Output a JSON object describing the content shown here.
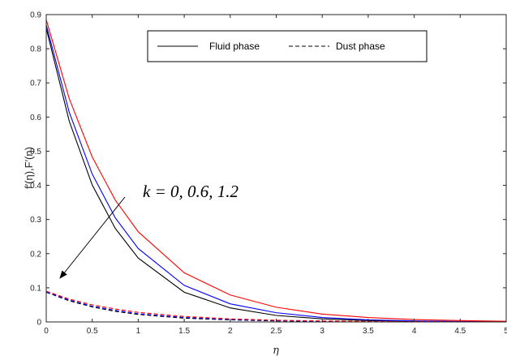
{
  "chart_data": {
    "type": "line",
    "title": "",
    "xlabel": "η",
    "ylabel": "f′(η),F′(η)",
    "xlim": [
      0,
      5
    ],
    "ylim": [
      0,
      0.9
    ],
    "xticks": [
      "0",
      "0.5",
      "1",
      "1.5",
      "2",
      "2.5",
      "3",
      "3.5",
      "4",
      "4.5",
      "5"
    ],
    "yticks": [
      "0",
      "0.1",
      "0.2",
      "0.3",
      "0.4",
      "0.5",
      "0.6",
      "0.7",
      "0.8",
      "0.9"
    ],
    "grid": false,
    "legend": {
      "placement": "top-center",
      "entries": [
        {
          "label": "Fluid phase",
          "style": "solid"
        },
        {
          "label": "Dust phase",
          "style": "dashed"
        }
      ]
    },
    "annotation": {
      "text": "k = 0, 0.6, 1.2"
    },
    "series": [
      {
        "phase": "fluid",
        "k": "0",
        "color": "#000000",
        "dash": "solid",
        "x": [
          0,
          0.25,
          0.5,
          0.75,
          1,
          1.5,
          2,
          2.5,
          3,
          3.5,
          4,
          4.5,
          5
        ],
        "y": [
          0.86,
          0.588,
          0.401,
          0.274,
          0.187,
          0.087,
          0.041,
          0.019,
          0.009,
          0.004,
          0.002,
          0.001,
          0.0005
        ]
      },
      {
        "phase": "fluid",
        "k": "0.6",
        "color": "#0000ff",
        "dash": "solid",
        "x": [
          0,
          0.25,
          0.5,
          0.75,
          1,
          1.5,
          2,
          2.5,
          3,
          3.5,
          4,
          4.5,
          5
        ],
        "y": [
          0.87,
          0.614,
          0.433,
          0.305,
          0.215,
          0.107,
          0.053,
          0.027,
          0.013,
          0.006,
          0.003,
          0.0015,
          0.0008
        ]
      },
      {
        "phase": "fluid",
        "k": "1.2",
        "color": "#ff0000",
        "dash": "solid",
        "x": [
          0,
          0.25,
          0.5,
          0.75,
          1,
          1.5,
          2,
          2.5,
          3,
          3.5,
          4,
          4.5,
          5
        ],
        "y": [
          0.885,
          0.654,
          0.483,
          0.357,
          0.264,
          0.144,
          0.079,
          0.043,
          0.023,
          0.013,
          0.007,
          0.004,
          0.002
        ]
      },
      {
        "phase": "dust",
        "k": "0",
        "color": "#000000",
        "dash": "dashed",
        "x": [
          0,
          0.25,
          0.5,
          0.75,
          1,
          1.5,
          2,
          2.5,
          3,
          3.5,
          4,
          4.5,
          5
        ],
        "y": [
          0.087,
          0.062,
          0.044,
          0.031,
          0.022,
          0.011,
          0.006,
          0.003,
          0.002,
          0.001,
          0.0005,
          0.0003,
          0.0001
        ]
      },
      {
        "phase": "dust",
        "k": "0.6",
        "color": "#0000ff",
        "dash": "dashed",
        "x": [
          0,
          0.25,
          0.5,
          0.75,
          1,
          1.5,
          2,
          2.5,
          3,
          3.5,
          4,
          4.5,
          5
        ],
        "y": [
          0.088,
          0.064,
          0.046,
          0.034,
          0.024,
          0.013,
          0.007,
          0.004,
          0.002,
          0.001,
          0.0006,
          0.0003,
          0.0002
        ]
      },
      {
        "phase": "dust",
        "k": "1.2",
        "color": "#ff0000",
        "dash": "dashed",
        "x": [
          0,
          0.25,
          0.5,
          0.75,
          1,
          1.5,
          2,
          2.5,
          3,
          3.5,
          4,
          4.5,
          5
        ],
        "y": [
          0.09,
          0.067,
          0.05,
          0.038,
          0.028,
          0.016,
          0.009,
          0.005,
          0.003,
          0.0017,
          0.001,
          0.0005,
          0.0003
        ]
      }
    ]
  }
}
